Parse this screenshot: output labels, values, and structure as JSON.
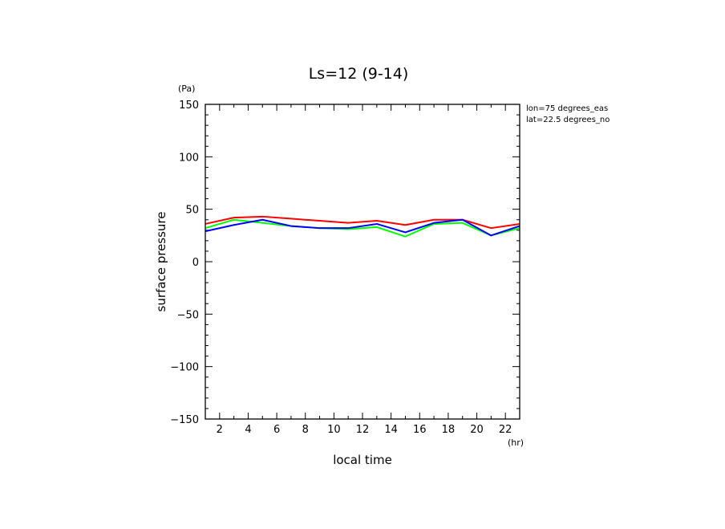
{
  "chart_data": {
    "type": "line",
    "title": "Ls=12 (9-14)",
    "xlabel": "local time",
    "ylabel": "surface pressure",
    "x_unit": "(hr)",
    "y_unit": "(Pa)",
    "annotations": [
      "lon=75 degrees_eas",
      "lat=22.5 degrees_no"
    ],
    "xlim": [
      1,
      23
    ],
    "ylim": [
      -150,
      150
    ],
    "x_ticks": [
      2,
      4,
      6,
      8,
      10,
      12,
      14,
      16,
      18,
      20,
      22
    ],
    "y_ticks": [
      150,
      100,
      50,
      0,
      -50,
      -100,
      -150
    ],
    "grid": false,
    "x": [
      1,
      3,
      5,
      7,
      9,
      11,
      13,
      15,
      17,
      19,
      21,
      23
    ],
    "series": [
      {
        "color": "#ff0000",
        "values": [
          36,
          42,
          43,
          41,
          39,
          37,
          39,
          35,
          40,
          40,
          32,
          36
        ]
      },
      {
        "color": "#00ff00",
        "values": [
          32,
          40,
          37,
          34,
          32,
          31,
          33,
          24,
          36,
          37,
          25,
          32
        ]
      },
      {
        "color": "#0000ff",
        "values": [
          29,
          35,
          40,
          34,
          32,
          32,
          36,
          28,
          37,
          40,
          25,
          34
        ]
      }
    ]
  }
}
